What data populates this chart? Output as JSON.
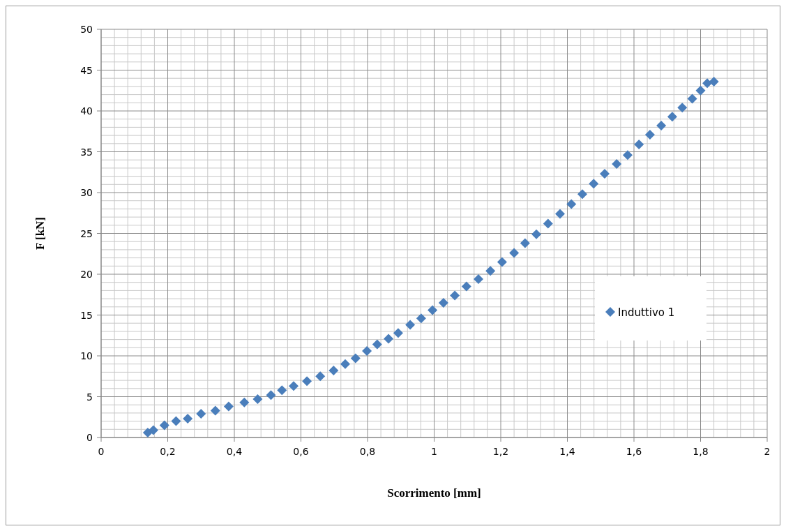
{
  "chart_data": {
    "type": "scatter",
    "xlabel": "Scorrimento [mm]",
    "ylabel": "F [kN]",
    "xlim": [
      0,
      2
    ],
    "xticks": [
      0,
      {
        "value": 0.2,
        "label": "0,2"
      },
      {
        "value": 0.4,
        "label": "0,4"
      },
      {
        "value": 0.6,
        "label": "0,6"
      },
      {
        "value": 0.8,
        "label": "0,8"
      },
      1,
      {
        "value": 1.2,
        "label": "1,2"
      },
      {
        "value": 1.4,
        "label": "1,4"
      },
      {
        "value": 1.6,
        "label": "1,6"
      },
      {
        "value": 1.8,
        "label": "1,8"
      },
      2
    ],
    "ylim": [
      0,
      50
    ],
    "yticks": [
      0,
      5,
      10,
      15,
      20,
      25,
      30,
      35,
      40,
      45,
      50
    ],
    "grid": true,
    "legend": "right",
    "marker": "diamond",
    "series": [
      {
        "name": "Induttivo 1",
        "color": "#4a7ebb",
        "x": [
          0.14,
          0.157,
          0.19,
          0.225,
          0.26,
          0.3,
          0.343,
          0.383,
          0.43,
          0.47,
          0.51,
          0.543,
          0.578,
          0.618,
          0.658,
          0.698,
          0.733,
          0.764,
          0.798,
          0.829,
          0.863,
          0.892,
          0.928,
          0.961,
          0.995,
          1.028,
          1.062,
          1.097,
          1.133,
          1.169,
          1.204,
          1.24,
          1.273,
          1.307,
          1.342,
          1.378,
          1.412,
          1.445,
          1.479,
          1.512,
          1.548,
          1.581,
          1.615,
          1.648,
          1.682,
          1.715,
          1.745,
          1.775,
          1.8,
          1.82,
          1.84
        ],
        "values": [
          0.6,
          0.9,
          1.5,
          2,
          2.3,
          2.9,
          3.3,
          3.8,
          4.3,
          4.7,
          5.2,
          5.8,
          6.3,
          6.9,
          7.5,
          8.2,
          9,
          9.7,
          10.6,
          11.4,
          12.1,
          12.8,
          13.8,
          14.6,
          15.6,
          16.5,
          17.4,
          18.5,
          19.4,
          20.4,
          21.5,
          22.6,
          23.8,
          24.9,
          26.2,
          27.4,
          28.6,
          29.8,
          31.1,
          32.3,
          33.5,
          34.6,
          35.9,
          37.1,
          38.2,
          39.3,
          40.4,
          41.5,
          42.5,
          43.4,
          43.6
        ]
      }
    ]
  }
}
